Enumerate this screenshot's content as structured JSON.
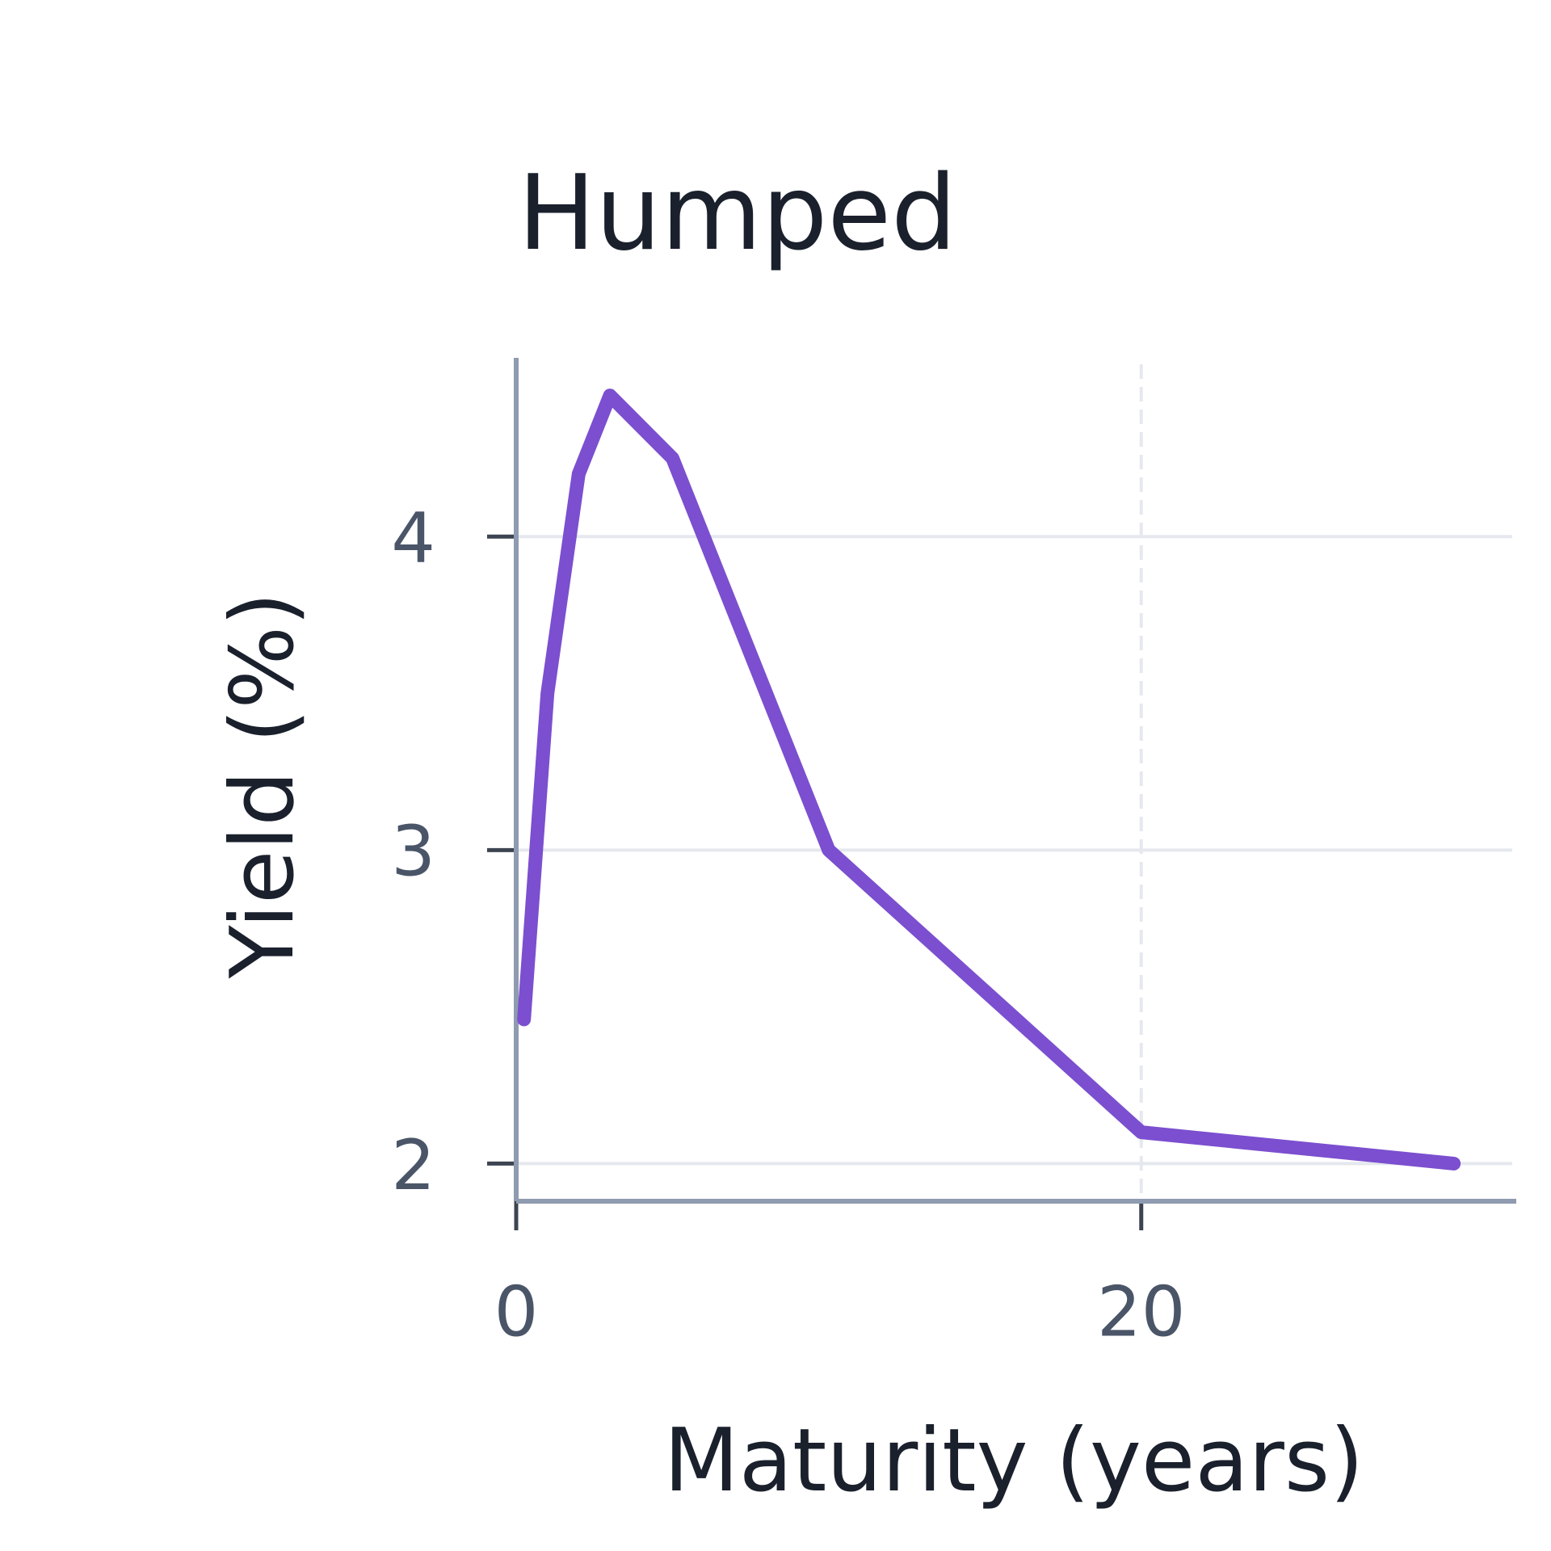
{
  "chart_data": {
    "type": "line",
    "title": "Humped",
    "x_label": "Maturity (years)",
    "y_label": "Yield (%)",
    "x": [
      0.25,
      1,
      2,
      3,
      5,
      7,
      10,
      20,
      30
    ],
    "values": [
      2.46,
      3.5,
      4.2,
      4.45,
      4.25,
      3.75,
      3.0,
      2.1,
      2.0
    ],
    "color": "#7b4fcf",
    "xlim": [
      0,
      32
    ],
    "ylim": [
      1.88,
      4.57
    ],
    "xticks": [
      0,
      20
    ],
    "yticks": [
      2,
      3,
      4
    ],
    "grid": true
  }
}
